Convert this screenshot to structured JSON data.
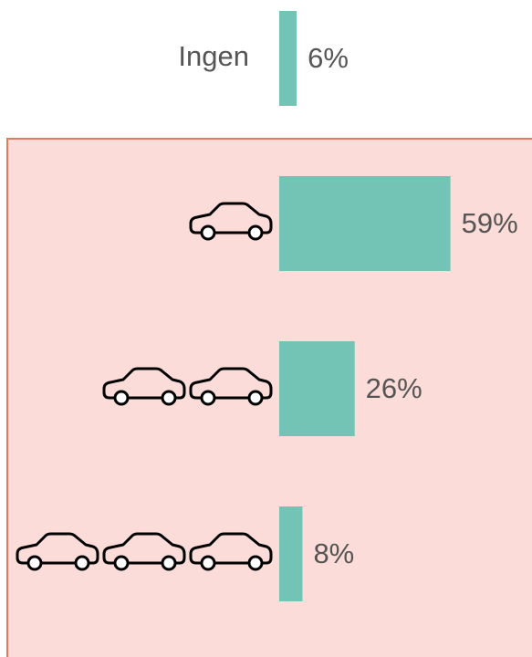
{
  "chart_data": {
    "type": "hbar",
    "categories": [
      "Ingen",
      null,
      null,
      null
    ],
    "values": [
      6,
      59,
      26,
      8
    ],
    "value_labels": [
      "6%",
      "59%",
      "26%",
      "8%"
    ],
    "color": "#74c4b5"
  }
}
